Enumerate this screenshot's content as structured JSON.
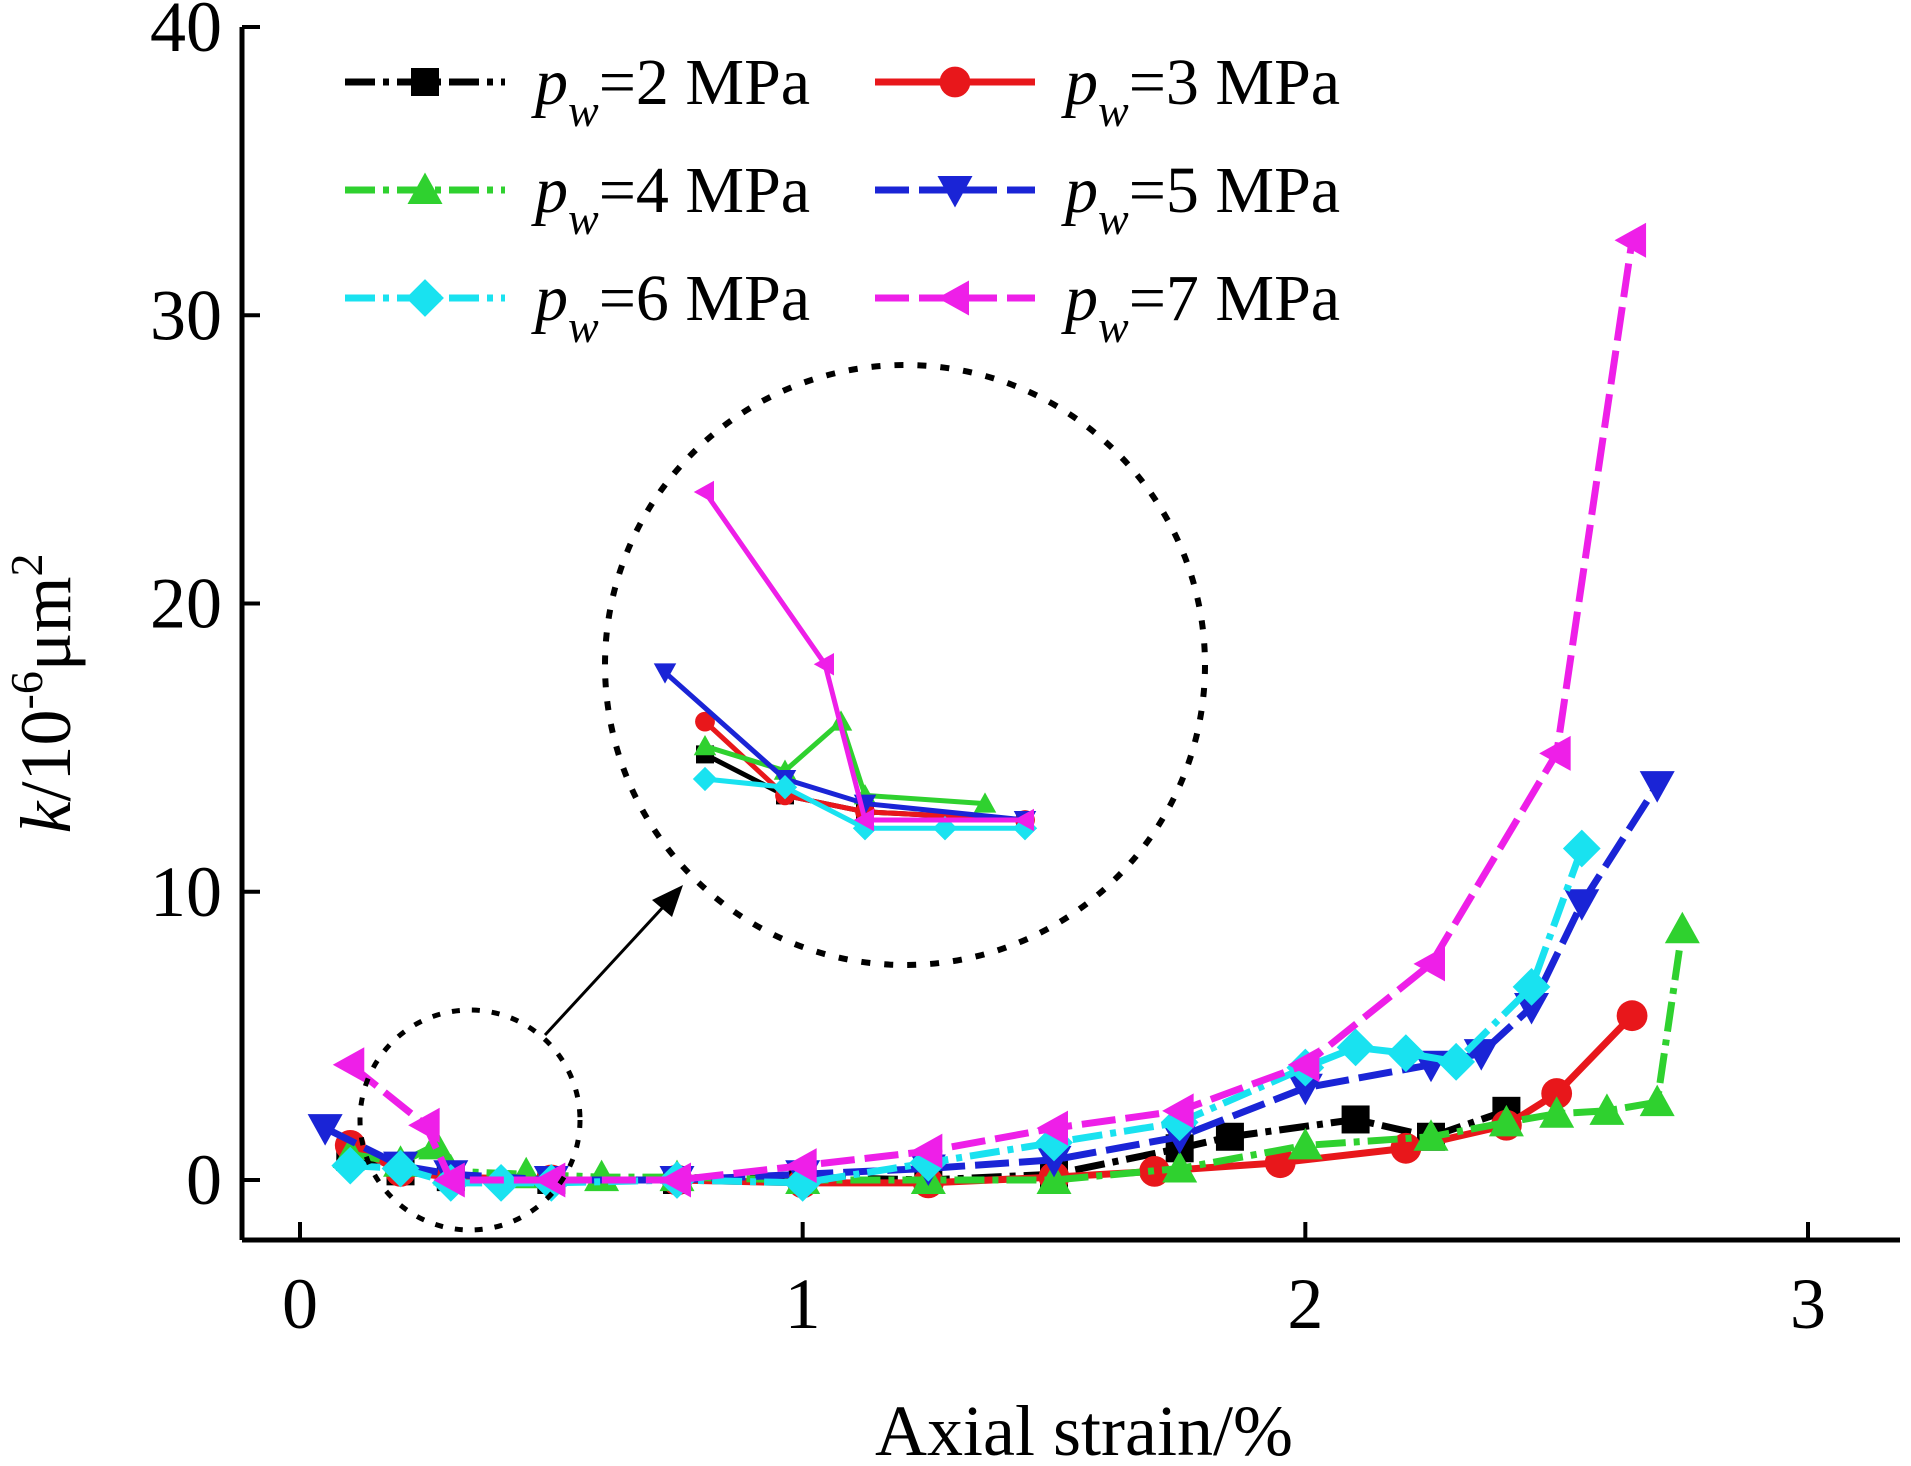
{
  "chart_data": {
    "type": "line",
    "xlabel": "Axial strain/%",
    "ylabel": "k/10⁻⁶μm²",
    "ylabel_parts": {
      "k": "k",
      "rest": "/10",
      "exp": "-6",
      "unit": "μm",
      "unit_exp": "2"
    },
    "xlim": [
      -0.25,
      3.0
    ],
    "ylim": [
      -2,
      40
    ],
    "xticks": [
      "0",
      "1",
      "2",
      "3"
    ],
    "xtick_values": [
      0,
      1,
      2,
      3
    ],
    "yticks": [
      "0",
      "10",
      "20",
      "30",
      "40"
    ],
    "ytick_values": [
      0,
      10,
      20,
      30,
      40
    ],
    "legend_placement": "top-left",
    "series": [
      {
        "name": "pw=2 MPa",
        "p": "p",
        "sub": "w",
        "label": "=2 MPa",
        "color": "#000000",
        "marker": "square",
        "dash": "dashdot",
        "x": [
          0.1,
          0.2,
          0.3,
          0.5,
          0.75,
          1.0,
          1.25,
          1.5,
          1.75,
          1.85,
          2.1,
          2.25,
          2.4
        ],
        "y": [
          0.8,
          0.3,
          0.1,
          0.0,
          0.0,
          0.1,
          0.0,
          0.2,
          1.1,
          1.5,
          2.1,
          1.5,
          2.4
        ]
      },
      {
        "name": "pw=3 MPa",
        "p": "p",
        "sub": "w",
        "label": "=3 MPa",
        "color": "#e8171b",
        "marker": "circle",
        "dash": "solid",
        "x": [
          0.1,
          0.2,
          0.3,
          0.5,
          0.75,
          1.0,
          1.25,
          1.5,
          1.7,
          1.95,
          2.2,
          2.4,
          2.5,
          2.65
        ],
        "y": [
          1.2,
          0.3,
          0.1,
          0.0,
          0.0,
          -0.1,
          -0.1,
          0.1,
          0.3,
          0.6,
          1.1,
          1.9,
          3.0,
          5.7
        ]
      },
      {
        "name": "pw=4 MPa",
        "p": "p",
        "sub": "w",
        "label": "=4 MPa",
        "color": "#2fd12f",
        "marker": "triangle-up",
        "dash": "dashdot",
        "x": [
          0.1,
          0.2,
          0.27,
          0.3,
          0.45,
          0.6,
          0.75,
          1.0,
          1.25,
          1.5,
          1.75,
          2.0,
          2.25,
          2.4,
          2.5,
          2.6,
          2.7,
          2.75
        ],
        "y": [
          0.9,
          0.6,
          1.2,
          0.3,
          0.2,
          0.1,
          0.1,
          0.0,
          0.0,
          0.0,
          0.4,
          1.2,
          1.5,
          2.0,
          2.3,
          2.4,
          2.7,
          8.7
        ]
      },
      {
        "name": "pw=5 MPa",
        "p": "p",
        "sub": "w",
        "label": "=5 MPa",
        "color": "#1a24d6",
        "marker": "triangle-down",
        "dash": "dash",
        "x": [
          0.05,
          0.2,
          0.3,
          0.5,
          0.75,
          1.0,
          1.25,
          1.5,
          1.75,
          2.0,
          2.25,
          2.35,
          2.45,
          2.55,
          2.7
        ],
        "y": [
          1.8,
          0.5,
          0.2,
          0.0,
          0.0,
          0.2,
          0.4,
          0.7,
          1.5,
          3.2,
          4.0,
          4.4,
          6.0,
          9.6,
          13.7
        ]
      },
      {
        "name": "pw=6 MPa",
        "p": "p",
        "sub": "w",
        "label": "=6 MPa",
        "color": "#19e2f0",
        "marker": "diamond",
        "dash": "dashdot",
        "x": [
          0.1,
          0.2,
          0.3,
          0.4,
          0.5,
          0.75,
          1.0,
          1.25,
          1.5,
          1.75,
          2.0,
          2.1,
          2.2,
          2.3,
          2.45,
          2.55
        ],
        "y": [
          0.5,
          0.4,
          -0.1,
          -0.1,
          -0.1,
          0.0,
          -0.1,
          0.6,
          1.3,
          2.0,
          3.9,
          4.6,
          4.4,
          4.1,
          6.7,
          11.5
        ]
      },
      {
        "name": "pw=7 MPa",
        "p": "p",
        "sub": "w",
        "label": "=7 MPa",
        "color": "#ee1fe8",
        "marker": "triangle-left",
        "dash": "dash",
        "x": [
          0.1,
          0.25,
          0.3,
          0.5,
          0.75,
          1.0,
          1.25,
          1.5,
          1.75,
          2.0,
          2.25,
          2.5,
          2.65
        ],
        "y": [
          4.0,
          1.9,
          0.0,
          0.0,
          0.0,
          0.5,
          1.0,
          1.8,
          2.4,
          4.0,
          7.5,
          14.8,
          32.6
        ]
      }
    ]
  }
}
